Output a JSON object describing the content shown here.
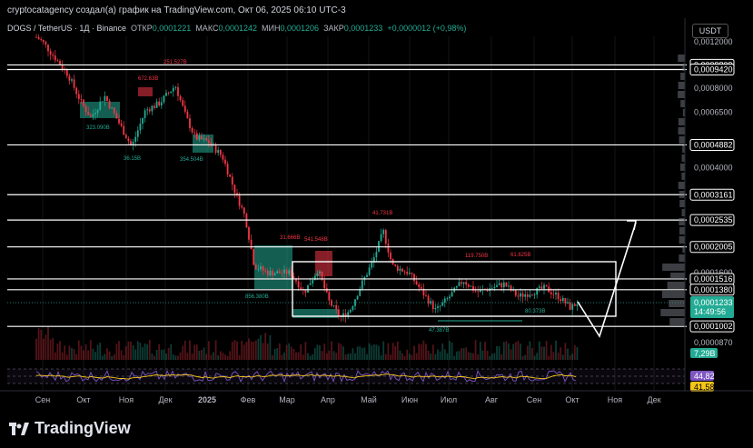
{
  "header": {
    "publisher_line": "cryptocatagency создал(а) график на TradingView.com, Окт 06, 2025 06:10 UTC-3"
  },
  "legend": {
    "pair": "DOGS / TetherUS · 1Д · Binance",
    "open_label": "ОТКР",
    "open_value": "0,0001221",
    "high_label": "МАКС",
    "high_value": "0,0001242",
    "low_label": "МИН",
    "low_value": "0,0001206",
    "close_label": "ЗАКР",
    "close_value": "0,0001233",
    "change": "+0,0000012 (+0,98%)"
  },
  "currency_label": "USDT",
  "brand": {
    "name": "TradingView"
  },
  "colors": {
    "up": "#22ab94",
    "down": "#f23645",
    "level_line": "#ffffff",
    "price_tag": "#22ab94",
    "rsi_line": "#7e57c2",
    "rsi_ma": "#f5c518"
  },
  "chart_data": [
    {
      "type": "candlestick",
      "title": "",
      "y_axis": {
        "scale": "log",
        "ticks": [
          "0,0012000",
          "0,0008000",
          "0,0006500",
          "0,0004000",
          "0,0001600",
          "0,0000870"
        ]
      },
      "x_axis": {
        "ticks": [
          "Сен",
          "Окт",
          "Ноя",
          "Дек",
          "2025",
          "Фев",
          "Мар",
          "Апр",
          "Май",
          "Июн",
          "Июл",
          "Авг",
          "Сен",
          "Окт",
          "Ноя",
          "Дек"
        ]
      },
      "horizontal_levels": [
        {
          "label": "0,0009809"
        },
        {
          "label": "0,0009420"
        },
        {
          "label": "0,0004882"
        },
        {
          "label": "0,0003161"
        },
        {
          "label": "0,0002535"
        },
        {
          "label": "0,0002005"
        },
        {
          "label": "0,0001516"
        },
        {
          "label": "0,0001380"
        },
        {
          "label": "0,0001002"
        }
      ],
      "current_price": {
        "label": "0,0001233",
        "countdown": "14:49:56"
      },
      "volume_tag": "7,29B",
      "annotations": [
        "672.63B",
        "251.527B",
        "323.090B",
        "36.15B",
        "354.504B",
        "31.666B",
        "541.548B",
        "856.380B",
        "41.731B",
        "119.750B",
        "61.625B",
        "80.373B",
        "47.387B"
      ]
    },
    {
      "type": "line",
      "title": "",
      "indicator": "RSI",
      "series": [
        {
          "name": "",
          "last_value": "44,82"
        },
        {
          "name": "",
          "last_value": "41,58"
        }
      ],
      "levels": [
        70,
        50,
        30
      ]
    }
  ]
}
